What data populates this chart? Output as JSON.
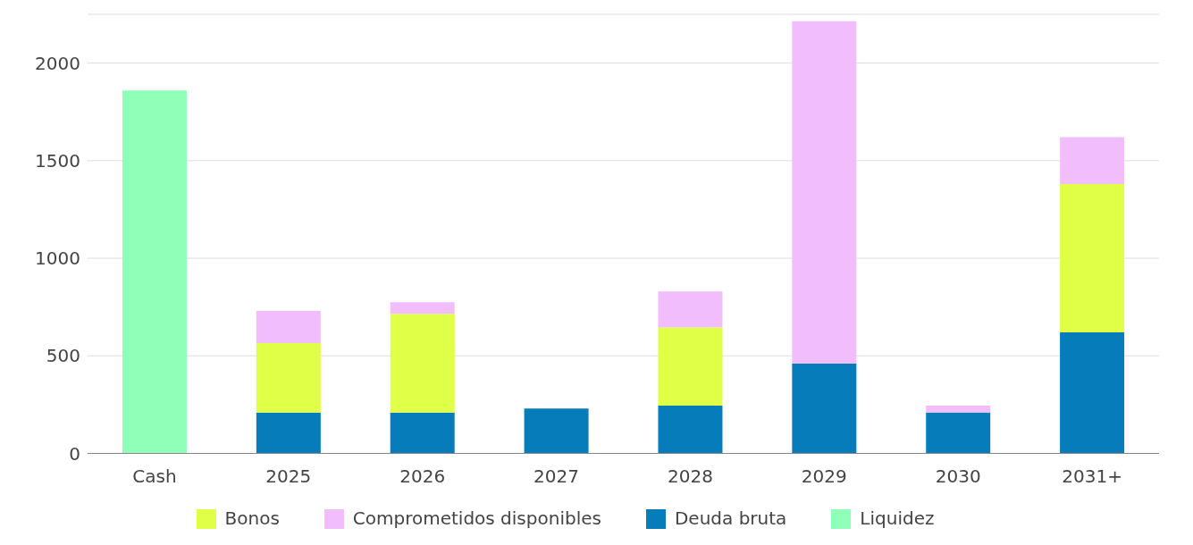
{
  "chart_data": {
    "type": "bar",
    "stacked": true,
    "categories": [
      "Cash",
      "2025",
      "2026",
      "2027",
      "2028",
      "2029",
      "2030",
      "2031+"
    ],
    "series": [
      {
        "name": "Liquidez",
        "color": "#90ffb8",
        "values": [
          1860,
          null,
          null,
          null,
          null,
          null,
          null,
          null
        ]
      },
      {
        "name": "Deuda bruta",
        "color": "#077cbb",
        "values": [
          null,
          210,
          210,
          230,
          245,
          460,
          210,
          620
        ]
      },
      {
        "name": "Bonos",
        "color": "#e0ff47",
        "values": [
          null,
          355,
          505,
          null,
          400,
          null,
          null,
          760
        ]
      },
      {
        "name": "Comprometidos disponibles",
        "color": "#f2bdfd",
        "values": [
          null,
          165,
          60,
          null,
          185,
          1755,
          35,
          240
        ]
      }
    ],
    "ylim": [
      0,
      2250
    ],
    "yticks": [
      0,
      500,
      1000,
      1500,
      2000
    ],
    "grid": "y",
    "legend": "bottom"
  }
}
